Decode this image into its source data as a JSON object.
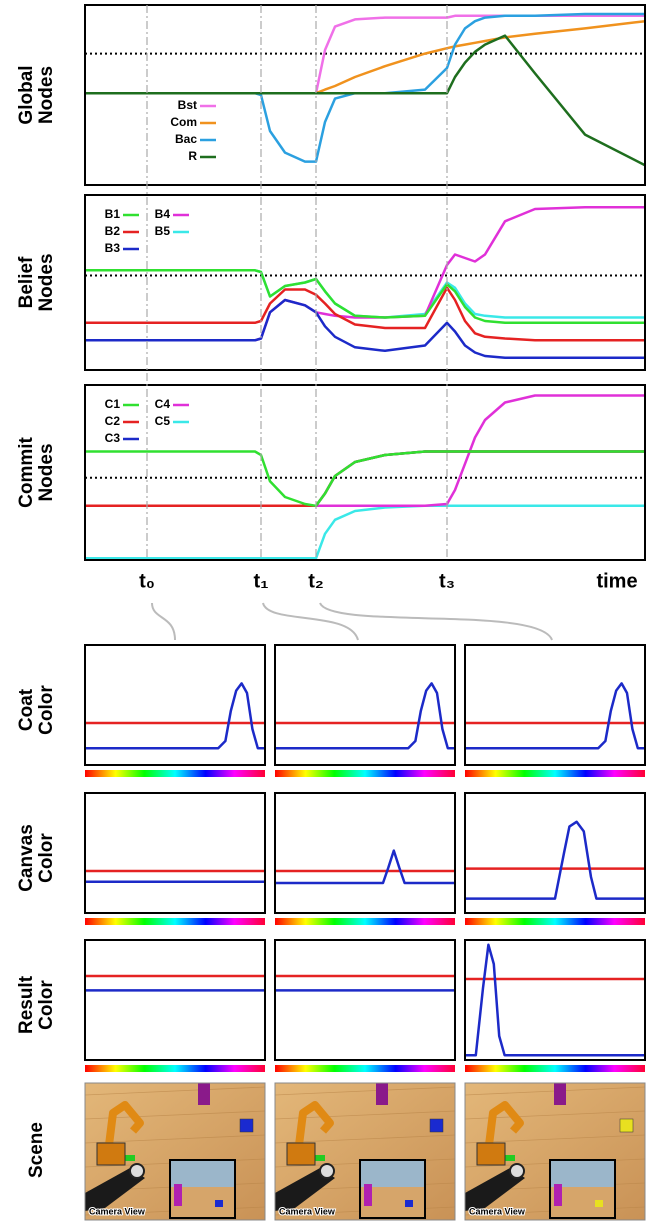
{
  "chart_data": [
    {
      "type": "line",
      "ylabel": [
        "Global",
        "Nodes"
      ],
      "xlim": [
        0,
        56
      ],
      "ylim": [
        0,
        1
      ],
      "hline": 0.73,
      "x": [
        0,
        6.2,
        17,
        17.6,
        18.5,
        20,
        22,
        23.1,
        24,
        25,
        27,
        30,
        34,
        36.2,
        37,
        38,
        39,
        40,
        42,
        45,
        50,
        56
      ],
      "series": [
        {
          "name": "Bst",
          "color": "#f070e8",
          "values": [
            0.51,
            0.51,
            0.51,
            0.51,
            0.51,
            0.51,
            0.51,
            0.51,
            0.75,
            0.88,
            0.92,
            0.93,
            0.93,
            0.93,
            0.94,
            0.94,
            0.94,
            0.94,
            0.94,
            0.94,
            0.94,
            0.94
          ]
        },
        {
          "name": "Com",
          "color": "#f0921e",
          "values": [
            0.51,
            0.51,
            0.51,
            0.51,
            0.51,
            0.51,
            0.51,
            0.51,
            0.53,
            0.55,
            0.6,
            0.66,
            0.73,
            0.76,
            0.77,
            0.78,
            0.79,
            0.8,
            0.82,
            0.84,
            0.87,
            0.91
          ]
        },
        {
          "name": "Bac",
          "color": "#2ba0e0",
          "values": [
            0.51,
            0.51,
            0.51,
            0.5,
            0.3,
            0.18,
            0.13,
            0.13,
            0.35,
            0.48,
            0.51,
            0.51,
            0.53,
            0.65,
            0.78,
            0.87,
            0.91,
            0.93,
            0.94,
            0.94,
            0.95,
            0.95
          ]
        },
        {
          "name": "R",
          "color": "#1e6e1e",
          "values": [
            0.51,
            0.51,
            0.51,
            0.51,
            0.51,
            0.51,
            0.51,
            0.51,
            0.51,
            0.51,
            0.51,
            0.51,
            0.51,
            0.51,
            0.6,
            0.68,
            0.74,
            0.78,
            0.83,
            0.62,
            0.28,
            0.11
          ]
        }
      ]
    },
    {
      "type": "line",
      "ylabel": [
        "Belief",
        "Nodes"
      ],
      "xlim": [
        0,
        56
      ],
      "ylim": [
        0,
        1
      ],
      "hline": 0.54,
      "x": [
        0,
        6.2,
        17,
        17.6,
        18.5,
        20,
        22,
        23.1,
        24,
        25,
        27,
        30,
        34,
        36.2,
        37,
        38,
        39,
        40,
        42,
        45,
        50,
        56
      ],
      "series": [
        {
          "name": "B1",
          "color": "#30e030",
          "values": [
            0.57,
            0.57,
            0.57,
            0.56,
            0.42,
            0.48,
            0.5,
            0.52,
            0.45,
            0.38,
            0.31,
            0.3,
            0.31,
            0.49,
            0.45,
            0.36,
            0.3,
            0.28,
            0.27,
            0.27,
            0.27,
            0.27
          ]
        },
        {
          "name": "B2",
          "color": "#e52222",
          "values": [
            0.27,
            0.27,
            0.27,
            0.28,
            0.38,
            0.46,
            0.46,
            0.43,
            0.38,
            0.32,
            0.26,
            0.24,
            0.24,
            0.47,
            0.4,
            0.28,
            0.21,
            0.19,
            0.18,
            0.17,
            0.17,
            0.17
          ]
        },
        {
          "name": "B3",
          "color": "#1c2ac8",
          "values": [
            0.17,
            0.17,
            0.17,
            0.18,
            0.33,
            0.4,
            0.37,
            0.33,
            0.25,
            0.19,
            0.13,
            0.11,
            0.14,
            0.27,
            0.22,
            0.14,
            0.1,
            0.08,
            0.07,
            0.07,
            0.07,
            0.07
          ]
        },
        {
          "name": "B4",
          "color": "#e030d8",
          "values": [
            0.17,
            0.17,
            0.17,
            0.18,
            0.33,
            0.4,
            0.37,
            0.33,
            0.32,
            0.31,
            0.3,
            0.3,
            0.31,
            0.6,
            0.66,
            0.64,
            0.62,
            0.66,
            0.85,
            0.92,
            0.93,
            0.93
          ]
        },
        {
          "name": "B5",
          "color": "#3ae8e8",
          "values": [
            0.57,
            0.57,
            0.57,
            0.56,
            0.42,
            0.48,
            0.5,
            0.52,
            0.45,
            0.38,
            0.31,
            0.3,
            0.32,
            0.5,
            0.47,
            0.38,
            0.32,
            0.31,
            0.3,
            0.3,
            0.3,
            0.3
          ]
        }
      ]
    },
    {
      "type": "line",
      "ylabel": [
        "Commit",
        "Nodes"
      ],
      "xlim": [
        0,
        56
      ],
      "ylim": [
        0,
        1
      ],
      "hline": 0.47,
      "xlabel": "time",
      "x": [
        0,
        6.2,
        17,
        17.6,
        18.5,
        20,
        22,
        23.1,
        24,
        25,
        27,
        30,
        34,
        36.2,
        37,
        38,
        39,
        40,
        42,
        45,
        50,
        56
      ],
      "xticks": [
        {
          "value": 6.2,
          "label": "t₀"
        },
        {
          "value": 17.6,
          "label": "t₁"
        },
        {
          "value": 23.1,
          "label": "t₂"
        },
        {
          "value": 36.2,
          "label": "t₃"
        }
      ],
      "series": [
        {
          "name": "C1",
          "color": "#30e030",
          "values": [
            0.62,
            0.62,
            0.62,
            0.6,
            0.45,
            0.36,
            0.32,
            0.31,
            0.38,
            0.48,
            0.56,
            0.6,
            0.62,
            0.62,
            0.62,
            0.62,
            0.62,
            0.62,
            0.62,
            0.62,
            0.62,
            0.62
          ]
        },
        {
          "name": "C2",
          "color": "#e52222",
          "values": [
            0.31,
            0.31,
            0.31,
            0.31,
            0.31,
            0.31,
            0.31,
            0.31,
            0.38,
            0.48,
            0.56,
            0.6,
            0.62,
            0.62,
            0.62,
            0.62,
            0.62,
            0.62,
            0.62,
            0.62,
            0.62,
            0.62
          ]
        },
        {
          "name": "C3",
          "color": "#1c2ac8",
          "values": [
            0.31,
            0.31,
            0.31,
            0.31,
            0.31,
            0.31,
            0.31,
            0.31,
            0.38,
            0.48,
            0.56,
            0.6,
            0.62,
            0.62,
            0.62,
            0.62,
            0.62,
            0.62,
            0.62,
            0.62,
            0.62,
            0.62
          ]
        },
        {
          "name": "C4",
          "color": "#e030d8",
          "values": [
            0.31,
            0.31,
            0.31,
            0.31,
            0.31,
            0.31,
            0.31,
            0.31,
            0.31,
            0.31,
            0.31,
            0.31,
            0.31,
            0.32,
            0.4,
            0.55,
            0.7,
            0.8,
            0.9,
            0.94,
            0.94,
            0.94
          ]
        },
        {
          "name": "C5",
          "color": "#3ae8e8",
          "values": [
            0.01,
            0.01,
            0.01,
            0.01,
            0.01,
            0.01,
            0.01,
            0.01,
            0.15,
            0.23,
            0.28,
            0.3,
            0.31,
            0.31,
            0.31,
            0.31,
            0.31,
            0.31,
            0.31,
            0.31,
            0.31,
            0.31
          ]
        }
      ]
    },
    {
      "type": "line",
      "ylabel": [
        "Coat",
        "Color"
      ],
      "xlim": [
        0,
        100
      ],
      "ylim": [
        0,
        1
      ],
      "series": [
        {
          "color": "#e52222",
          "x": [
            0,
            100
          ],
          "values": [
            0.35,
            0.35
          ]
        },
        {
          "color": "#1c2ac8",
          "x": [
            0,
            74,
            78,
            81,
            84,
            87,
            90,
            93,
            96,
            100
          ],
          "values": [
            0.14,
            0.14,
            0.2,
            0.45,
            0.62,
            0.68,
            0.6,
            0.3,
            0.14,
            0.14
          ]
        }
      ]
    },
    {
      "type": "line",
      "xlim": [
        0,
        100
      ],
      "ylim": [
        0,
        1
      ],
      "series": [
        {
          "color": "#e52222",
          "x": [
            0,
            100
          ],
          "values": [
            0.35,
            0.35
          ]
        },
        {
          "color": "#1c2ac8",
          "x": [
            0,
            74,
            78,
            81,
            84,
            87,
            90,
            93,
            96,
            100
          ],
          "values": [
            0.14,
            0.14,
            0.2,
            0.45,
            0.62,
            0.68,
            0.6,
            0.3,
            0.14,
            0.14
          ]
        }
      ]
    },
    {
      "type": "line",
      "xlim": [
        0,
        100
      ],
      "ylim": [
        0,
        1
      ],
      "series": [
        {
          "color": "#e52222",
          "x": [
            0,
            100
          ],
          "values": [
            0.35,
            0.35
          ]
        },
        {
          "color": "#1c2ac8",
          "x": [
            0,
            74,
            78,
            81,
            84,
            87,
            90,
            93,
            96,
            100
          ],
          "values": [
            0.14,
            0.14,
            0.2,
            0.45,
            0.62,
            0.68,
            0.6,
            0.3,
            0.14,
            0.14
          ]
        }
      ]
    },
    {
      "type": "line",
      "ylabel": [
        "Canvas",
        "Color"
      ],
      "xlim": [
        0,
        100
      ],
      "ylim": [
        0,
        1
      ],
      "series": [
        {
          "color": "#e52222",
          "x": [
            0,
            100
          ],
          "values": [
            0.35,
            0.35
          ]
        },
        {
          "color": "#1c2ac8",
          "x": [
            0,
            100
          ],
          "values": [
            0.26,
            0.26
          ]
        }
      ]
    },
    {
      "type": "line",
      "xlim": [
        0,
        100
      ],
      "ylim": [
        0,
        1
      ],
      "series": [
        {
          "color": "#e52222",
          "x": [
            0,
            100
          ],
          "values": [
            0.35,
            0.35
          ]
        },
        {
          "color": "#1c2ac8",
          "x": [
            0,
            60,
            63,
            66,
            69,
            72,
            100
          ],
          "values": [
            0.25,
            0.25,
            0.38,
            0.52,
            0.38,
            0.25,
            0.25
          ]
        }
      ]
    },
    {
      "type": "line",
      "xlim": [
        0,
        100
      ],
      "ylim": [
        0,
        1
      ],
      "series": [
        {
          "color": "#e52222",
          "x": [
            0,
            100
          ],
          "values": [
            0.37,
            0.37
          ]
        },
        {
          "color": "#1c2ac8",
          "x": [
            0,
            50,
            55,
            58,
            62,
            66,
            70,
            73,
            100
          ],
          "values": [
            0.12,
            0.12,
            0.5,
            0.72,
            0.76,
            0.68,
            0.3,
            0.12,
            0.12
          ]
        }
      ]
    },
    {
      "type": "line",
      "ylabel": [
        "Result",
        "Color"
      ],
      "xlim": [
        0,
        100
      ],
      "ylim": [
        0,
        1
      ],
      "series": [
        {
          "color": "#e52222",
          "x": [
            0,
            100
          ],
          "values": [
            0.7,
            0.7
          ]
        },
        {
          "color": "#1c2ac8",
          "x": [
            0,
            100
          ],
          "values": [
            0.58,
            0.58
          ]
        }
      ]
    },
    {
      "type": "line",
      "xlim": [
        0,
        100
      ],
      "ylim": [
        0,
        1
      ],
      "series": [
        {
          "color": "#e52222",
          "x": [
            0,
            100
          ],
          "values": [
            0.7,
            0.7
          ]
        },
        {
          "color": "#1c2ac8",
          "x": [
            0,
            100
          ],
          "values": [
            0.58,
            0.58
          ]
        }
      ]
    },
    {
      "type": "line",
      "xlim": [
        0,
        100
      ],
      "ylim": [
        0,
        1
      ],
      "series": [
        {
          "color": "#e52222",
          "x": [
            0,
            100
          ],
          "values": [
            0.675,
            0.675
          ]
        },
        {
          "color": "#1c2ac8",
          "x": [
            0,
            6,
            10,
            13,
            16,
            19,
            22,
            100
          ],
          "values": [
            0.04,
            0.04,
            0.6,
            0.96,
            0.8,
            0.2,
            0.04,
            0.04
          ]
        }
      ]
    }
  ],
  "scene": {
    "ylabel": "Scene",
    "camera_label": "Camera View",
    "cube_colors": [
      "#1a2ad0",
      "#1a2ad0",
      "#e8e020"
    ]
  }
}
